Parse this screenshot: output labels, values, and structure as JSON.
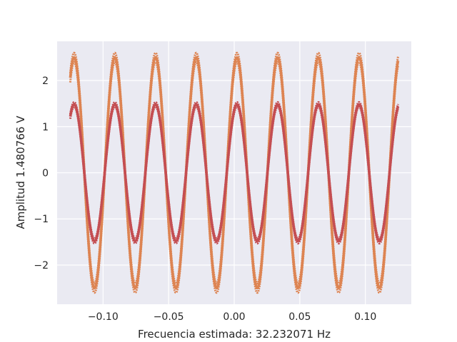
{
  "chart_data": {
    "type": "line",
    "title": "",
    "xlabel": "Frecuencia estimada: 32.232071 Hz",
    "ylabel": "Amplitud 1.480766 V",
    "xlim": [
      -0.135,
      0.135
    ],
    "ylim": [
      -2.85,
      2.85
    ],
    "x_ticks": [
      -0.1,
      -0.05,
      0.0,
      0.05,
      0.1
    ],
    "x_tick_labels": [
      "−0.10",
      "−0.05",
      "0.00",
      "0.05",
      "0.10"
    ],
    "y_ticks": [
      -2,
      -1,
      0,
      1,
      2
    ],
    "y_tick_labels": [
      "−2",
      "−1",
      "0",
      "1",
      "2"
    ],
    "grid": true,
    "background_color": "#eaeaf2",
    "grid_color": "#ffffff",
    "series": [
      {
        "color": "#dd8452",
        "frequency_hz": 32.232071,
        "amplitude": 2.5,
        "phase_rad": 1.15,
        "x_range": [
          -0.125,
          0.125
        ],
        "error_bar": 0.1,
        "sample_count": 1000
      },
      {
        "color": "#c44e52",
        "frequency_hz": 32.232071,
        "amplitude": 1.480766,
        "phase_rad": 1.15,
        "x_range": [
          -0.125,
          0.125
        ],
        "error_bar": 0.05,
        "sample_count": 1000
      }
    ]
  }
}
